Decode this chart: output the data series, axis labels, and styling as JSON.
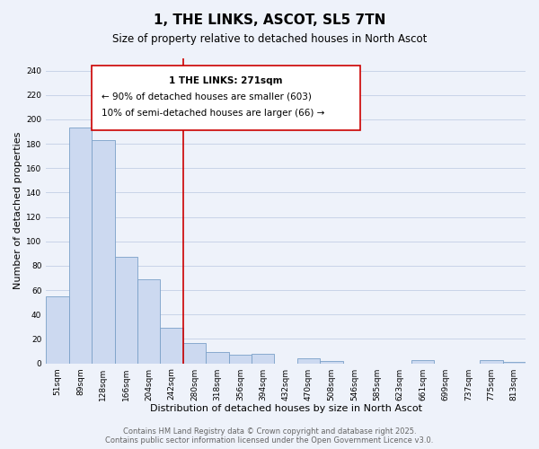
{
  "title": "1, THE LINKS, ASCOT, SL5 7TN",
  "subtitle": "Size of property relative to detached houses in North Ascot",
  "xlabel": "Distribution of detached houses by size in North Ascot",
  "ylabel": "Number of detached properties",
  "bar_color": "#ccd9f0",
  "bar_edge_color": "#7aa0c8",
  "bin_labels": [
    "51sqm",
    "89sqm",
    "128sqm",
    "166sqm",
    "204sqm",
    "242sqm",
    "280sqm",
    "318sqm",
    "356sqm",
    "394sqm",
    "432sqm",
    "470sqm",
    "508sqm",
    "546sqm",
    "585sqm",
    "623sqm",
    "661sqm",
    "699sqm",
    "737sqm",
    "775sqm",
    "813sqm"
  ],
  "bar_values": [
    55,
    193,
    183,
    87,
    69,
    29,
    17,
    9,
    7,
    8,
    0,
    4,
    2,
    0,
    0,
    0,
    3,
    0,
    0,
    3,
    1
  ],
  "ylim": [
    0,
    250
  ],
  "yticks": [
    0,
    20,
    40,
    60,
    80,
    100,
    120,
    140,
    160,
    180,
    200,
    220,
    240
  ],
  "vline_position": 5.5,
  "vline_color": "#cc0000",
  "annotation_title": "1 THE LINKS: 271sqm",
  "annotation_line1": "← 90% of detached houses are smaller (603)",
  "annotation_line2": "10% of semi-detached houses are larger (66) →",
  "annotation_box_color": "#ffffff",
  "annotation_box_edge": "#cc0000",
  "grid_color": "#c8d4e8",
  "bg_color": "#eef2fa",
  "footer_line1": "Contains HM Land Registry data © Crown copyright and database right 2025.",
  "footer_line2": "Contains public sector information licensed under the Open Government Licence v3.0.",
  "title_fontsize": 11,
  "subtitle_fontsize": 8.5,
  "axis_label_fontsize": 8,
  "tick_fontsize": 6.5,
  "annotation_fontsize": 7.5,
  "footer_fontsize": 6
}
